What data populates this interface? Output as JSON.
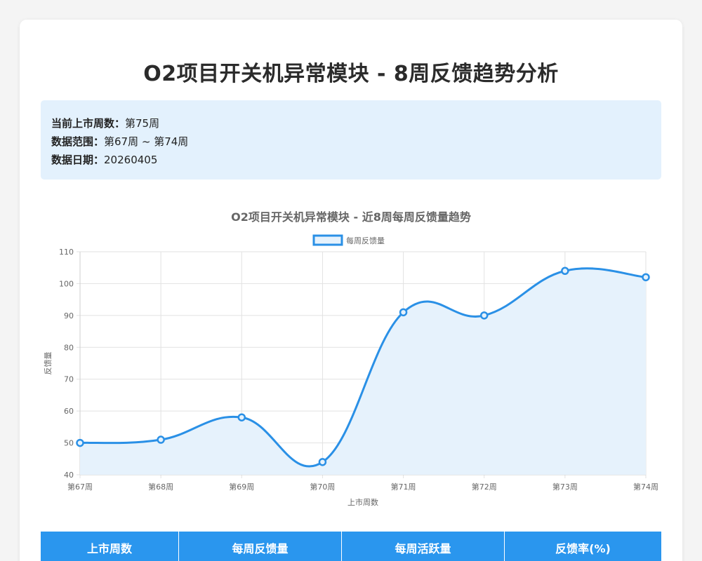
{
  "page": {
    "title": "O2项目开关机异常模块 - 8周反馈趋势分析"
  },
  "info": {
    "current_week_label": "当前上市周数：",
    "current_week_value": "第75周",
    "range_label": "数据范围：",
    "range_value": "第67周 ~ 第74周",
    "date_label": "数据日期：",
    "date_value": "20260405"
  },
  "chart_data": {
    "type": "line",
    "title": "O2项目开关机异常模块 - 近8周每周反馈量趋势",
    "xlabel": "上市周数",
    "ylabel": "反馈量",
    "categories": [
      "第67周",
      "第68周",
      "第69周",
      "第70周",
      "第71周",
      "第72周",
      "第73周",
      "第74周"
    ],
    "series": [
      {
        "name": "每周反馈量",
        "values": [
          50,
          51,
          58,
          44,
          91,
          90,
          104,
          102
        ]
      }
    ],
    "ylim": [
      40,
      110
    ],
    "yticks": [
      40,
      50,
      60,
      70,
      80,
      90,
      100,
      110
    ],
    "grid": true,
    "legend": "top-center",
    "line_color": "#2a90e6",
    "fill_color": "#e6f2fc"
  },
  "table": {
    "headers": [
      "上市周数",
      "每周反馈量",
      "每周活跃量",
      "反馈率(%)"
    ],
    "header_color": "#2a96ee"
  }
}
